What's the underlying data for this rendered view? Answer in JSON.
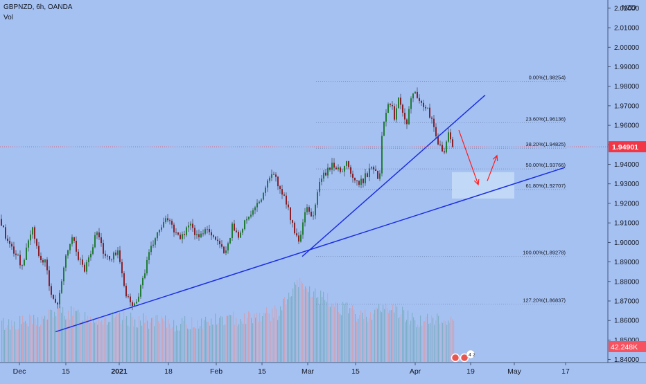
{
  "header": {
    "symbol_line": "GBPNZD, 6h, OANDA",
    "indicator": "Vol"
  },
  "price_axis": {
    "currency": "NZD",
    "current_price": "1.94901",
    "volume_label": "42.248K",
    "current_price_color": "#f23645",
    "volume_label_color": "#f7525f"
  },
  "chart_data": {
    "type": "candlestick",
    "x_tick_labels": [
      "Dec",
      "15",
      "2021",
      "18",
      "Feb",
      "15",
      "Mar",
      "15",
      "Apr",
      "19",
      "May",
      "17"
    ],
    "y_ticks": [
      1.84,
      1.85,
      1.86,
      1.87,
      1.88,
      1.89,
      1.9,
      1.91,
      1.92,
      1.93,
      1.94,
      1.95,
      1.96,
      1.97,
      1.98,
      1.99,
      2.0,
      2.01,
      2.02
    ],
    "y_tick_labels": [
      "1.84000",
      "1.85000",
      "1.86000",
      "1.87000",
      "1.88000",
      "1.89000",
      "1.90000",
      "1.91000",
      "1.92000",
      "1.93000",
      "1.94000",
      "1.95000",
      "1.96000",
      "1.97000",
      "1.98000",
      "1.99000",
      "2.00000",
      "2.01000",
      "2.02000"
    ],
    "ylim": [
      1.8388,
      2.0242
    ],
    "price_path": [
      [
        0,
        1.912
      ],
      [
        12,
        1.9
      ],
      [
        22,
        1.895
      ],
      [
        32,
        1.888
      ],
      [
        42,
        1.9
      ],
      [
        48,
        1.908
      ],
      [
        56,
        1.893
      ],
      [
        66,
        1.889
      ],
      [
        76,
        1.872
      ],
      [
        82,
        1.866
      ],
      [
        90,
        1.882
      ],
      [
        98,
        1.896
      ],
      [
        106,
        1.903
      ],
      [
        114,
        1.892
      ],
      [
        122,
        1.886
      ],
      [
        132,
        1.896
      ],
      [
        140,
        1.906
      ],
      [
        150,
        1.895
      ],
      [
        160,
        1.89
      ],
      [
        170,
        1.897
      ],
      [
        178,
        1.88
      ],
      [
        186,
        1.87
      ],
      [
        194,
        1.867
      ],
      [
        204,
        1.878
      ],
      [
        214,
        1.892
      ],
      [
        224,
        1.902
      ],
      [
        234,
        1.908
      ],
      [
        244,
        1.913
      ],
      [
        254,
        1.905
      ],
      [
        264,
        1.903
      ],
      [
        272,
        1.91
      ],
      [
        280,
        1.906
      ],
      [
        288,
        1.901
      ],
      [
        296,
        1.908
      ],
      [
        306,
        1.905
      ],
      [
        316,
        1.899
      ],
      [
        326,
        1.894
      ],
      [
        336,
        1.909
      ],
      [
        346,
        1.903
      ],
      [
        356,
        1.912
      ],
      [
        366,
        1.916
      ],
      [
        376,
        1.921
      ],
      [
        386,
        1.93
      ],
      [
        396,
        1.936
      ],
      [
        404,
        1.926
      ],
      [
        414,
        1.921
      ],
      [
        422,
        1.909
      ],
      [
        432,
        1.899
      ],
      [
        442,
        1.917
      ],
      [
        452,
        1.913
      ],
      [
        462,
        1.932
      ],
      [
        472,
        1.936
      ],
      [
        482,
        1.94
      ],
      [
        490,
        1.936
      ],
      [
        500,
        1.941
      ],
      [
        510,
        1.932
      ],
      [
        520,
        1.93
      ],
      [
        530,
        1.935
      ],
      [
        540,
        1.939
      ],
      [
        548,
        1.932
      ],
      [
        552,
        1.96
      ],
      [
        558,
        1.968
      ],
      [
        564,
        1.972
      ],
      [
        570,
        1.964
      ],
      [
        576,
        1.976
      ],
      [
        582,
        1.967
      ],
      [
        588,
        1.962
      ],
      [
        594,
        1.976
      ],
      [
        600,
        1.979
      ],
      [
        606,
        1.97
      ],
      [
        612,
        1.971
      ],
      [
        618,
        1.967
      ],
      [
        624,
        1.962
      ],
      [
        630,
        1.952
      ],
      [
        636,
        1.949
      ],
      [
        642,
        1.946
      ],
      [
        648,
        1.957
      ],
      [
        654,
        1.949
      ]
    ],
    "volume_path": [
      [
        0,
        1.858
      ],
      [
        60,
        1.86
      ],
      [
        80,
        1.865
      ],
      [
        140,
        1.861
      ],
      [
        200,
        1.86
      ],
      [
        260,
        1.858
      ],
      [
        340,
        1.861
      ],
      [
        400,
        1.864
      ],
      [
        430,
        1.879
      ],
      [
        460,
        1.872
      ],
      [
        520,
        1.862
      ],
      [
        560,
        1.867
      ],
      [
        600,
        1.86
      ],
      [
        650,
        1.86
      ]
    ],
    "trendlines": [
      {
        "name": "lower-trendline",
        "x1": 80,
        "y1": 1.8542,
        "x2": 815,
        "y2": 1.9384,
        "color": "#1b2ee0"
      },
      {
        "name": "upper-trendline",
        "x1": 436,
        "y1": 1.8928,
        "x2": 700,
        "y2": 1.9755,
        "color": "#1b2ee0"
      }
    ],
    "fibonacci": [
      {
        "label": "0.00%(1.98254)",
        "value": 1.98254
      },
      {
        "label": "23.60%(1.96136)",
        "value": 1.96136
      },
      {
        "label": "38.20%(1.94825)",
        "value": 1.94825
      },
      {
        "label": "50.00%(1.93766)",
        "value": 1.93766
      },
      {
        "label": "61.80%(1.92707)",
        "value": 1.92707
      },
      {
        "label": "100.00%(1.89278)",
        "value": 1.89278
      },
      {
        "label": "127.20%(1.86837)",
        "value": 1.86837
      }
    ],
    "target_zone": {
      "y_top": 1.936,
      "y_bottom": 1.9225,
      "color": "#c6dcf7"
    },
    "projection_arrows": [
      {
        "from": [
          662,
          1.9575
        ],
        "to": [
          690,
          1.9296
        ],
        "color": "#ff1a1a"
      },
      {
        "from": [
          703,
          1.9315
        ],
        "to": [
          717,
          1.9445
        ],
        "color": "#ff1a1a"
      }
    ],
    "current_price_value": 1.94901,
    "colors": {
      "up": "#26a69a",
      "down": "#ef5350",
      "axis_text": "#131722",
      "grid_dot": "#6b7fa8"
    }
  }
}
